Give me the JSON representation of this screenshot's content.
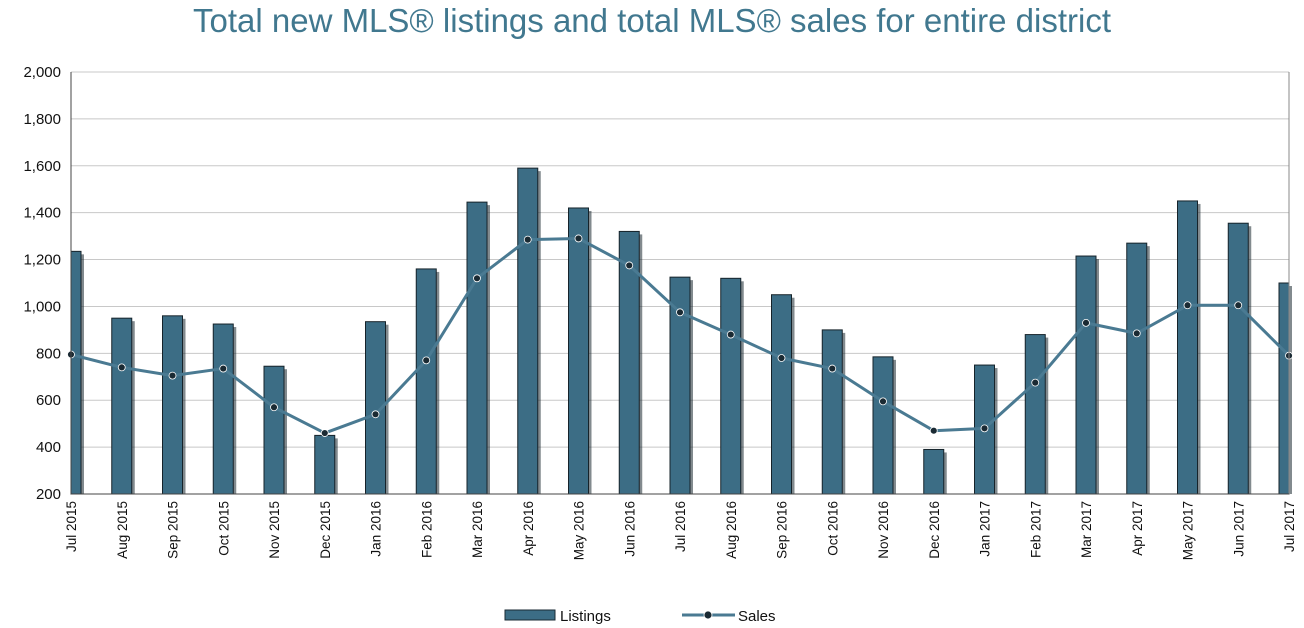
{
  "chart_data": {
    "type": "bar",
    "title": "Total new MLS® listings and total MLS® sales for entire district",
    "categories": [
      "Jul 2015",
      "Aug 2015",
      "Sep 2015",
      "Oct 2015",
      "Nov 2015",
      "Dec 2015",
      "Jan 2016",
      "Feb 2016",
      "Mar 2016",
      "Apr 2016",
      "May 2016",
      "Jun 2016",
      "Jul 2016",
      "Aug 2016",
      "Sep 2016",
      "Oct 2016",
      "Nov 2016",
      "Dec 2016",
      "Jan 2017",
      "Feb 2017",
      "Mar 2017",
      "Apr 2017",
      "May 2017",
      "Jun 2017",
      "Jul 2017"
    ],
    "series": [
      {
        "name": "Listings",
        "type": "bar",
        "color": "#3c6d85",
        "values": [
          1235,
          950,
          960,
          925,
          745,
          450,
          935,
          1160,
          1445,
          1590,
          1420,
          1320,
          1125,
          1120,
          1050,
          900,
          785,
          390,
          750,
          880,
          1215,
          1270,
          1450,
          1355,
          1100
        ]
      },
      {
        "name": "Sales",
        "type": "line",
        "color": "#4a7a92",
        "values": [
          795,
          740,
          705,
          735,
          570,
          460,
          540,
          770,
          1120,
          1285,
          1290,
          1175,
          975,
          880,
          780,
          735,
          595,
          470,
          480,
          675,
          930,
          885,
          1005,
          1005,
          790
        ]
      }
    ],
    "ylim": [
      200,
      2000
    ],
    "yticks": [
      "2,000",
      "1,800",
      "1,600",
      "1,400",
      "1,200",
      "1,000",
      "800",
      "600",
      "400",
      "200"
    ],
    "ytick_values": [
      2000,
      1800,
      1600,
      1400,
      1200,
      1000,
      800,
      600,
      400,
      200
    ],
    "grid": true,
    "legend_position": "bottom"
  }
}
